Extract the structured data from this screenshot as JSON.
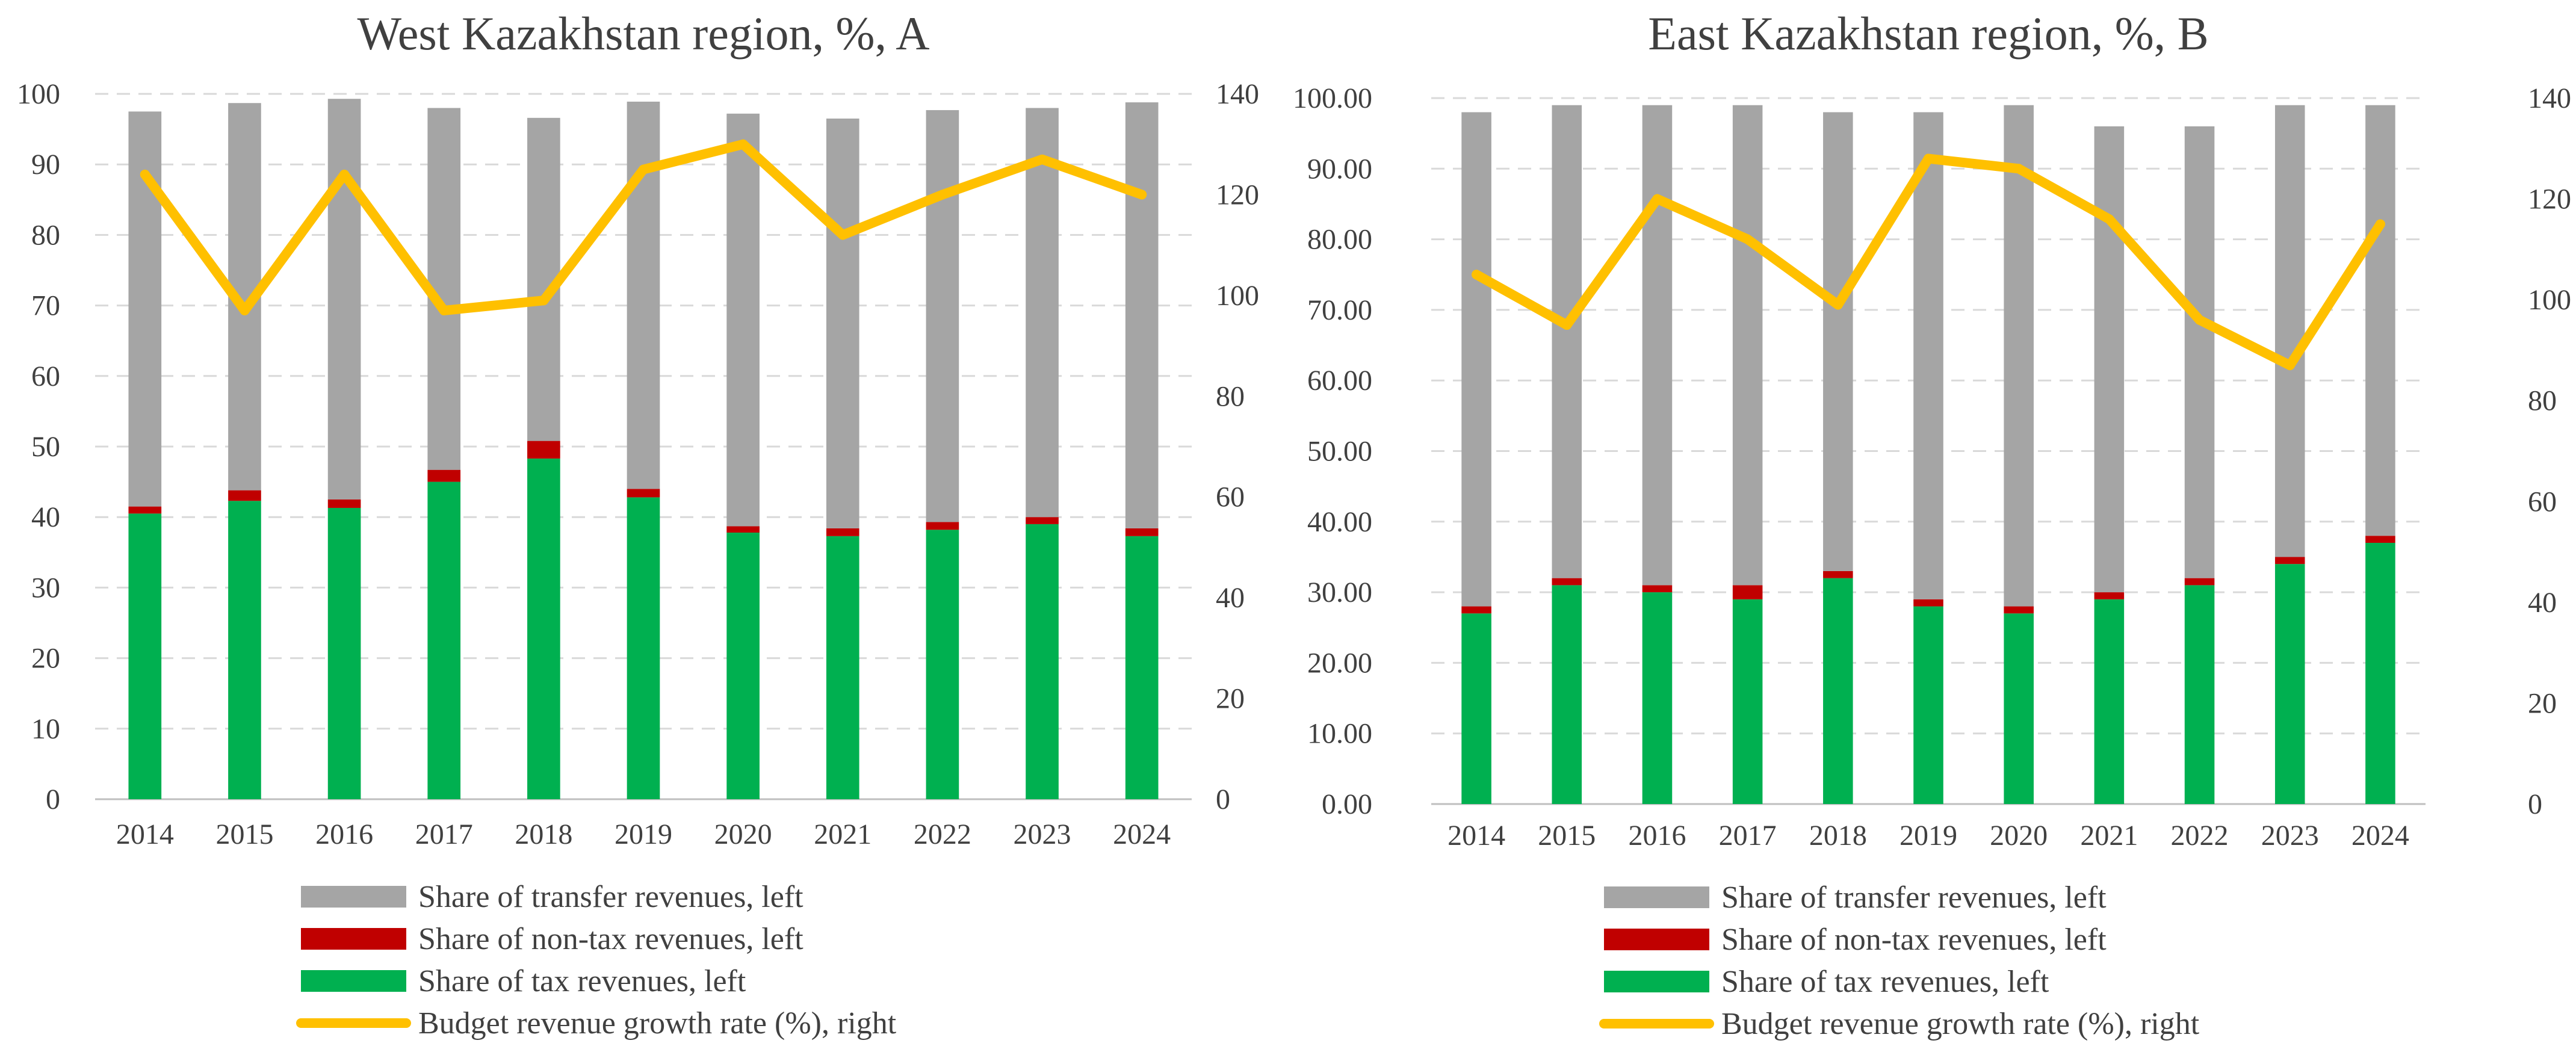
{
  "chart_data": [
    {
      "type": "bar",
      "stacked": true,
      "title": "West Kazakhstan region, %, A",
      "categories": [
        "2014",
        "2015",
        "2016",
        "2017",
        "2018",
        "2019",
        "2020",
        "2021",
        "2022",
        "2023",
        "2024"
      ],
      "ylim_left": [
        0,
        100
      ],
      "left_ticks": [
        "0",
        "10",
        "20",
        "30",
        "40",
        "50",
        "60",
        "70",
        "80",
        "90",
        "100"
      ],
      "ylim_right": [
        0,
        140
      ],
      "right_ticks": [
        "0",
        "20",
        "40",
        "60",
        "80",
        "100",
        "120",
        "140"
      ],
      "series": [
        {
          "name": "Share of tax revenues, left",
          "axis": "left",
          "kind": "bar",
          "color": "#00b050",
          "values": [
            40.5,
            42.3,
            41.3,
            45.0,
            48.3,
            42.8,
            37.8,
            37.3,
            38.2,
            39.0,
            37.3
          ]
        },
        {
          "name": "Share of non-tax revenues, left",
          "axis": "left",
          "kind": "bar",
          "color": "#c00000",
          "values": [
            1.0,
            1.5,
            1.2,
            1.7,
            2.5,
            1.2,
            0.9,
            1.1,
            1.1,
            1.0,
            1.1
          ]
        },
        {
          "name": "Share of transfer revenues, left",
          "axis": "left",
          "kind": "bar",
          "color": "#a5a5a5",
          "values": [
            56.0,
            54.9,
            56.8,
            51.3,
            45.8,
            54.9,
            58.5,
            58.1,
            58.4,
            58.0,
            60.4
          ]
        },
        {
          "name": "Budget revenue growth rate (%), right",
          "axis": "right",
          "kind": "line",
          "color": "#ffc000",
          "values": [
            124,
            97,
            124,
            97,
            99,
            125,
            130,
            112,
            120,
            127,
            120
          ]
        }
      ],
      "legend": [
        "Share of transfer revenues, left",
        "Share of non-tax revenues, left",
        "Share of tax revenues, left",
        "Budget revenue growth rate (%), right"
      ],
      "legend_position": "bottom"
    },
    {
      "type": "bar",
      "stacked": true,
      "title": "East Kazakhstan region, %, B",
      "categories": [
        "2014",
        "2015",
        "2016",
        "2017",
        "2018",
        "2019",
        "2020",
        "2021",
        "2022",
        "2023",
        "2024"
      ],
      "ylim_left": [
        0,
        100
      ],
      "left_ticks": [
        "0.00",
        "10.00",
        "20.00",
        "30.00",
        "40.00",
        "50.00",
        "60.00",
        "70.00",
        "80.00",
        "90.00",
        "100.00"
      ],
      "ylim_right": [
        0,
        140
      ],
      "right_ticks": [
        "0",
        "20",
        "40",
        "60",
        "80",
        "100",
        "120",
        "140"
      ],
      "series": [
        {
          "name": "Share of tax revenues, left",
          "axis": "left",
          "kind": "bar",
          "color": "#00b050",
          "values": [
            27.0,
            31.0,
            30.0,
            29.0,
            32.0,
            28.0,
            27.0,
            29.0,
            31.0,
            34.0,
            37.0
          ]
        },
        {
          "name": "Share of non-tax revenues, left",
          "axis": "left",
          "kind": "bar",
          "color": "#c00000",
          "values": [
            1.0,
            1.0,
            1.0,
            2.0,
            1.0,
            1.0,
            1.0,
            1.0,
            1.0,
            1.0,
            1.0
          ]
        },
        {
          "name": "Share of transfer revenues, left",
          "axis": "left",
          "kind": "bar",
          "color": "#a5a5a5",
          "values": [
            70.0,
            67.0,
            68.0,
            68.0,
            65.0,
            69.0,
            71.0,
            66.0,
            64.0,
            64.0,
            61.0
          ]
        },
        {
          "name": "Budget revenue growth rate (%), right",
          "axis": "right",
          "kind": "line",
          "color": "#ffc000",
          "values": [
            105,
            95,
            120,
            112,
            99,
            128,
            126,
            116,
            96,
            87,
            115
          ]
        }
      ],
      "legend": [
        "Share of transfer revenues, left",
        "Share of non-tax revenues, left",
        "Share of tax revenues, left",
        "Budget revenue growth rate (%), right"
      ],
      "legend_position": "bottom"
    }
  ]
}
